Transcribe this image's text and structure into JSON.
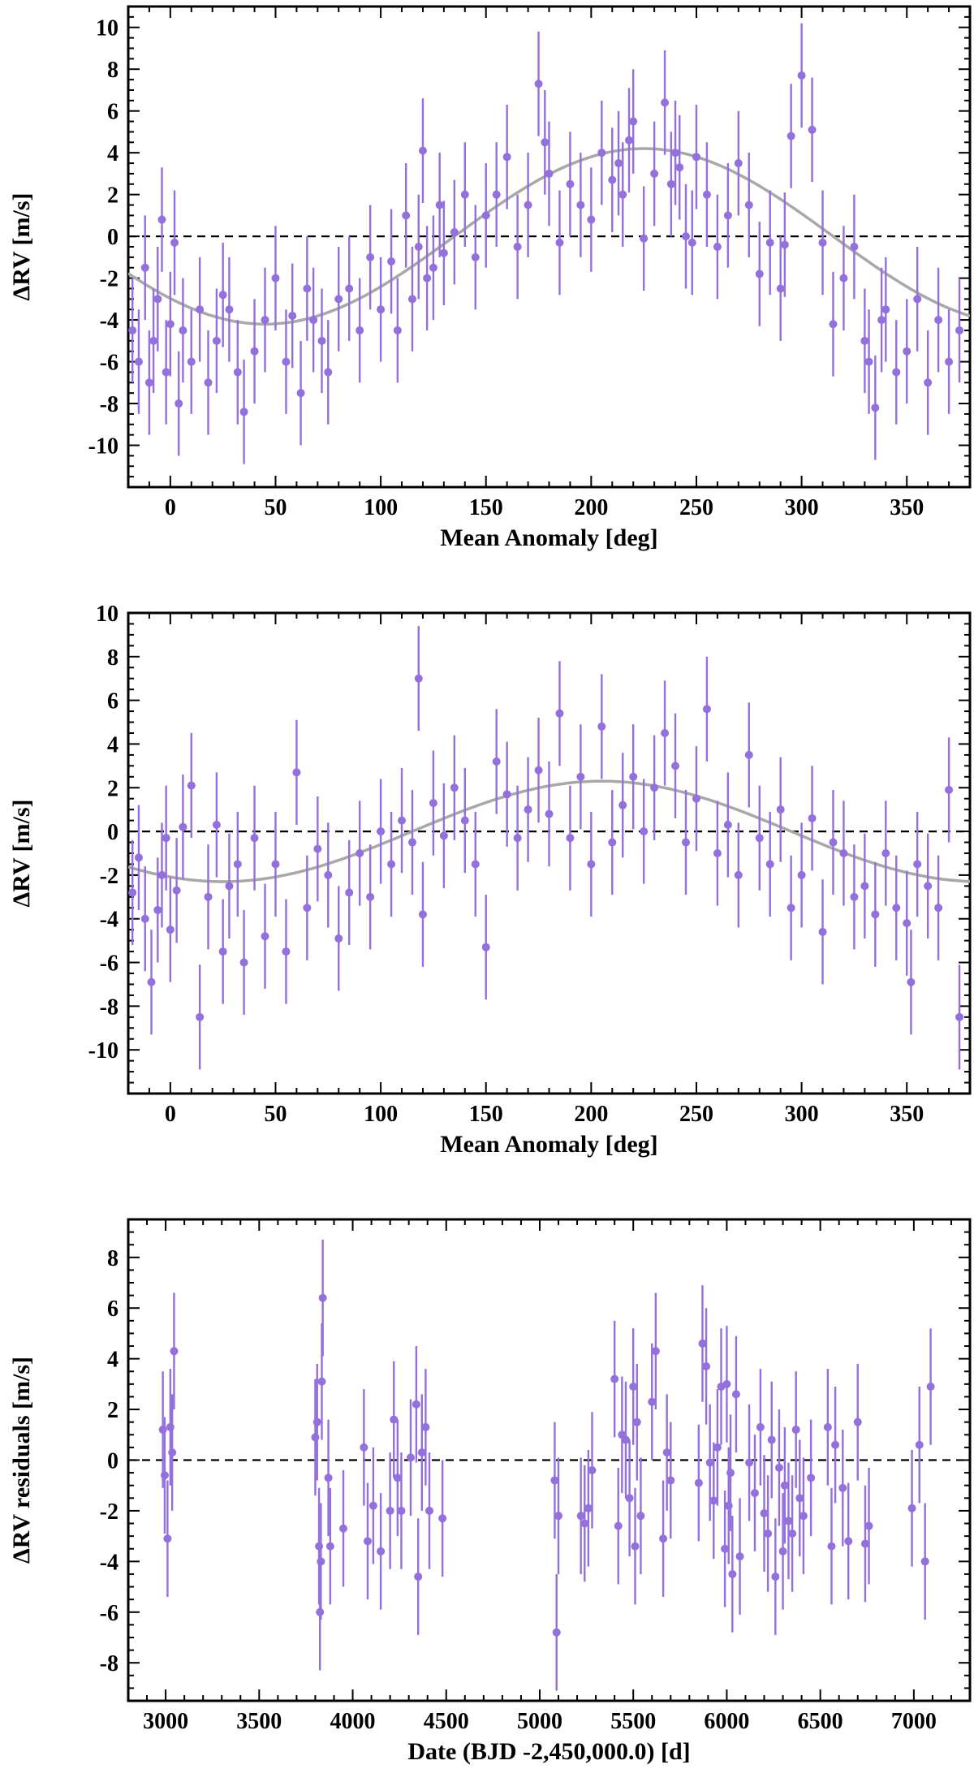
{
  "chart_data": [
    {
      "type": "scatter",
      "xlabel": "Mean Anomaly [deg]",
      "ylabel": "ΔRV [m/s]",
      "xlim": [
        -20,
        380
      ],
      "ylim": [
        -12,
        11
      ],
      "xticks": [
        0,
        50,
        100,
        150,
        200,
        250,
        300,
        350
      ],
      "xtick_labels": [
        "0",
        "50",
        "100",
        "150",
        "200",
        "250",
        "300",
        "350"
      ],
      "yticks": [
        -10,
        -8,
        -6,
        -4,
        -2,
        0,
        2,
        4,
        6,
        8,
        10
      ],
      "ytick_labels": [
        "-10",
        "-8",
        "-6",
        "-4",
        "-2",
        "0",
        "2",
        "4",
        "6",
        "8",
        "10"
      ],
      "zero_line": 0,
      "model": {
        "amplitude": 4.2,
        "peak_phase": 225,
        "shape": "sinusoid"
      },
      "error_bar": 2.5,
      "marker_color": "#9370db",
      "model_color": "#a8a8a8",
      "series": [
        {
          "x": [
            -18,
            -15,
            -12,
            -10,
            -8,
            -6,
            -4,
            -2,
            0,
            2,
            4,
            6,
            10,
            14,
            18,
            22,
            25,
            28,
            32,
            35,
            40,
            45,
            50,
            55,
            58,
            62,
            65,
            68,
            72,
            75,
            80,
            85,
            90,
            95,
            100,
            105,
            108,
            112,
            115,
            118,
            120,
            122,
            125,
            128,
            130,
            135,
            140,
            145,
            150,
            155,
            160,
            165,
            170,
            175,
            178,
            180,
            185,
            190,
            195,
            200,
            205,
            210,
            213,
            215,
            218,
            220,
            225,
            230,
            235,
            238,
            240,
            242,
            245,
            248,
            250,
            255,
            260,
            265,
            270,
            275,
            280,
            285,
            290,
            292,
            295,
            300,
            305,
            310,
            315,
            320,
            325,
            330,
            332,
            335,
            338,
            340,
            345,
            350,
            355,
            360,
            365,
            370,
            375
          ],
          "y": [
            -4.5,
            -6.0,
            -1.5,
            -7.0,
            -5.0,
            -3.0,
            0.8,
            -6.5,
            -4.2,
            -0.3,
            -8.0,
            -4.5,
            -6.0,
            -3.5,
            -7.0,
            -5.0,
            -2.8,
            -3.5,
            -6.5,
            -8.4,
            -5.5,
            -4.0,
            -2.0,
            -6.0,
            -3.8,
            -7.5,
            -2.5,
            -4.0,
            -5.0,
            -6.5,
            -3.0,
            -2.5,
            -4.5,
            -1.0,
            -3.5,
            -1.2,
            -4.5,
            1.0,
            -3.0,
            -0.5,
            4.1,
            -2.0,
            -1.5,
            1.5,
            -0.8,
            0.2,
            2.0,
            -1.0,
            1.0,
            2.0,
            3.8,
            -0.5,
            1.5,
            7.3,
            4.5,
            3.0,
            -0.3,
            2.5,
            1.5,
            0.8,
            4.0,
            2.7,
            3.5,
            2.0,
            4.6,
            5.5,
            -0.1,
            3.0,
            6.4,
            2.5,
            4.0,
            3.3,
            0.0,
            -0.3,
            3.8,
            2.0,
            -0.5,
            1.0,
            3.5,
            1.5,
            -1.8,
            -0.3,
            -2.5,
            -0.4,
            4.8,
            7.7,
            5.1,
            -0.3,
            -4.2,
            -2.0,
            -0.5,
            -5.0,
            -6.0,
            -8.2,
            -4.0,
            -3.5,
            -6.5,
            -5.5,
            -3.0,
            -7.0,
            -4.0,
            -6.0,
            -4.5
          ]
        }
      ]
    },
    {
      "type": "scatter",
      "xlabel": "Mean Anomaly [deg]",
      "ylabel": "ΔRV [m/s]",
      "xlim": [
        -20,
        380
      ],
      "ylim": [
        -12,
        10
      ],
      "xticks": [
        0,
        50,
        100,
        150,
        200,
        250,
        300,
        350
      ],
      "xtick_labels": [
        "0",
        "50",
        "100",
        "150",
        "200",
        "250",
        "300",
        "350"
      ],
      "yticks": [
        -10,
        -8,
        -6,
        -4,
        -2,
        0,
        2,
        4,
        6,
        8,
        10
      ],
      "ytick_labels": [
        "-10",
        "-8",
        "-6",
        "-4",
        "-2",
        "0",
        "2",
        "4",
        "6",
        "8",
        "10"
      ],
      "zero_line": 0,
      "model": {
        "amplitude": 2.3,
        "peak_phase": 205,
        "shape": "sinusoid"
      },
      "error_bar": 2.4,
      "marker_color": "#9370db",
      "model_color": "#a8a8a8",
      "series": [
        {
          "x": [
            -18,
            -15,
            -12,
            -9,
            -6,
            -4,
            -2,
            0,
            3,
            6,
            10,
            14,
            18,
            22,
            25,
            28,
            32,
            35,
            40,
            45,
            50,
            55,
            60,
            65,
            70,
            75,
            80,
            85,
            90,
            95,
            100,
            105,
            110,
            115,
            118,
            120,
            125,
            130,
            135,
            140,
            145,
            150,
            155,
            160,
            165,
            170,
            175,
            180,
            185,
            190,
            195,
            200,
            205,
            210,
            215,
            220,
            225,
            230,
            235,
            240,
            245,
            250,
            255,
            260,
            265,
            270,
            275,
            280,
            285,
            290,
            295,
            300,
            305,
            310,
            315,
            320,
            325,
            330,
            335,
            340,
            345,
            350,
            352,
            355,
            360,
            365,
            370,
            375
          ],
          "y": [
            -2.8,
            -1.2,
            -4.0,
            -6.9,
            -3.6,
            -2.0,
            -0.3,
            -4.5,
            -2.7,
            0.2,
            2.1,
            -8.5,
            -3.0,
            0.3,
            -5.5,
            -2.5,
            -1.5,
            -6.0,
            -0.3,
            -4.8,
            -1.5,
            -5.5,
            2.7,
            -3.5,
            -0.8,
            -2.0,
            -4.9,
            -2.8,
            -1.0,
            -3.0,
            0.0,
            -1.5,
            0.5,
            -0.5,
            7.0,
            -3.8,
            1.3,
            -0.2,
            2.0,
            0.5,
            -1.5,
            -5.3,
            3.2,
            1.7,
            -0.3,
            1.0,
            2.8,
            0.8,
            5.4,
            -0.3,
            2.5,
            -1.5,
            4.8,
            -0.5,
            1.2,
            2.5,
            0.0,
            2.0,
            4.5,
            3.0,
            -0.5,
            1.5,
            5.6,
            -1.0,
            0.3,
            -2.0,
            3.5,
            -0.3,
            -1.5,
            1.0,
            -3.5,
            -2.0,
            0.6,
            -4.6,
            -0.5,
            -1.0,
            -3.0,
            -2.5,
            -3.8,
            -1.0,
            -3.5,
            -4.2,
            -6.9,
            -1.5,
            -2.5,
            -3.5,
            1.9,
            -8.5
          ]
        }
      ]
    },
    {
      "type": "scatter",
      "xlabel": "Date (BJD -2,450,000.0) [d]",
      "ylabel": "ΔRV residuals [m/s]",
      "xlim": [
        2800,
        7300
      ],
      "ylim": [
        -9.5,
        9.5
      ],
      "xticks": [
        3000,
        3500,
        4000,
        4500,
        5000,
        5500,
        6000,
        6500,
        7000
      ],
      "xtick_labels": [
        "3000",
        "3500",
        "4000",
        "4500",
        "5000",
        "5500",
        "6000",
        "6500",
        "7000"
      ],
      "yticks": [
        -8,
        -6,
        -4,
        -2,
        0,
        2,
        4,
        6,
        8
      ],
      "ytick_labels": [
        "-8",
        "-6",
        "-4",
        "-2",
        "0",
        "2",
        "4",
        "6",
        "8"
      ],
      "zero_line": 0,
      "error_bar": 2.3,
      "marker_color": "#9370db",
      "series": [
        {
          "x": [
            2985,
            2995,
            3010,
            3025,
            3035,
            3045,
            3800,
            3810,
            3820,
            3825,
            3830,
            3835,
            3840,
            3870,
            3880,
            3950,
            4060,
            4080,
            4110,
            4150,
            4200,
            4220,
            4240,
            4260,
            4310,
            4340,
            4350,
            4370,
            4390,
            4410,
            4480,
            5080,
            5090,
            5100,
            5220,
            5240,
            5260,
            5280,
            5400,
            5420,
            5440,
            5460,
            5480,
            5500,
            5510,
            5520,
            5540,
            5600,
            5620,
            5660,
            5680,
            5700,
            5850,
            5870,
            5890,
            5910,
            5930,
            5950,
            5970,
            5990,
            6000,
            6010,
            6020,
            6030,
            6050,
            6070,
            6120,
            6150,
            6180,
            6200,
            6220,
            6240,
            6260,
            6280,
            6300,
            6310,
            6330,
            6350,
            6370,
            6390,
            6410,
            6450,
            6540,
            6560,
            6580,
            6620,
            6650,
            6700,
            6740,
            6760,
            6990,
            7030,
            7060,
            7090
          ],
          "y": [
            1.2,
            -0.6,
            -3.1,
            1.3,
            0.3,
            4.3,
            0.9,
            1.5,
            -3.4,
            -6.0,
            -4.0,
            3.1,
            6.4,
            -0.7,
            -3.4,
            -2.7,
            0.5,
            -3.2,
            -1.8,
            -3.6,
            -2.0,
            1.6,
            -0.7,
            -2.0,
            0.1,
            2.2,
            -4.6,
            0.3,
            1.3,
            -2.0,
            -2.3,
            -0.8,
            -6.8,
            -2.2,
            -2.2,
            -2.5,
            -1.9,
            -0.4,
            3.2,
            -2.6,
            1.0,
            0.8,
            -1.5,
            2.9,
            -3.4,
            1.5,
            -2.2,
            2.3,
            4.3,
            -3.1,
            0.3,
            -0.8,
            -0.9,
            4.6,
            3.7,
            -0.1,
            -1.6,
            0.5,
            2.9,
            -3.5,
            3.0,
            -1.8,
            -0.5,
            -4.5,
            2.6,
            -3.8,
            -0.1,
            -1.3,
            1.3,
            -2.1,
            -2.9,
            0.8,
            -4.6,
            -0.3,
            -3.6,
            -1.0,
            -2.4,
            -2.9,
            1.2,
            -1.5,
            -2.2,
            -0.7,
            1.3,
            -3.4,
            0.6,
            -1.1,
            -3.2,
            1.5,
            -3.3,
            -2.6,
            -1.9,
            0.6,
            -4.0,
            2.9
          ]
        }
      ]
    }
  ]
}
